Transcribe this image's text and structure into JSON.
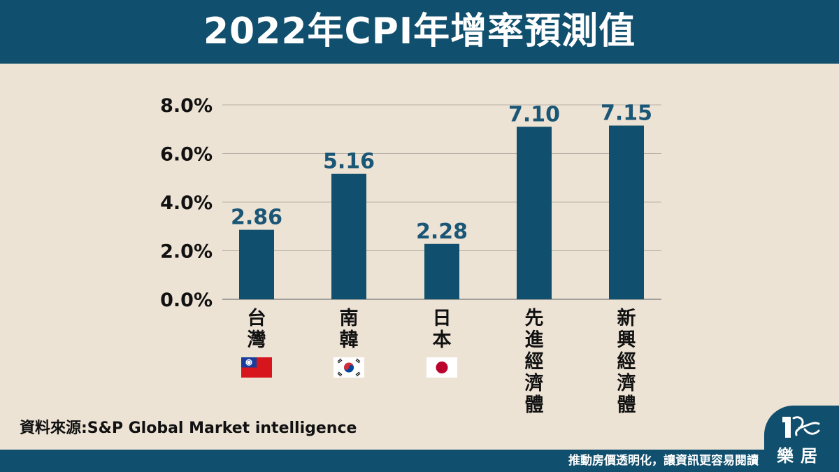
{
  "title": "2022年CPI年增率預測值",
  "source": "資料來源:S&P Global Market intelligence",
  "footer": {
    "slogan": "推動房價透明化，讓資訊更容易閱讀",
    "logo_text": "樂居"
  },
  "colors": {
    "header": "#104f6d",
    "background": "#ede3d5",
    "bar": "#104f6d",
    "data_label": "#1a5675"
  },
  "flags": [
    "taiwan-flag",
    "south-korea-flag",
    "japan-flag"
  ],
  "chart_data": {
    "type": "bar",
    "categories": [
      "台灣",
      "南韓",
      "日本",
      "先進經濟體",
      "新興經濟體"
    ],
    "values": [
      2.86,
      5.16,
      2.28,
      7.1,
      7.15
    ],
    "data_labels": [
      "2.86",
      "5.16",
      "2.28",
      "7.10",
      "7.15"
    ],
    "yticks": [
      "0.0%",
      "2.0%",
      "4.0%",
      "6.0%",
      "8.0%"
    ],
    "ylim": [
      0,
      8
    ],
    "grid": true,
    "legend": "none"
  }
}
